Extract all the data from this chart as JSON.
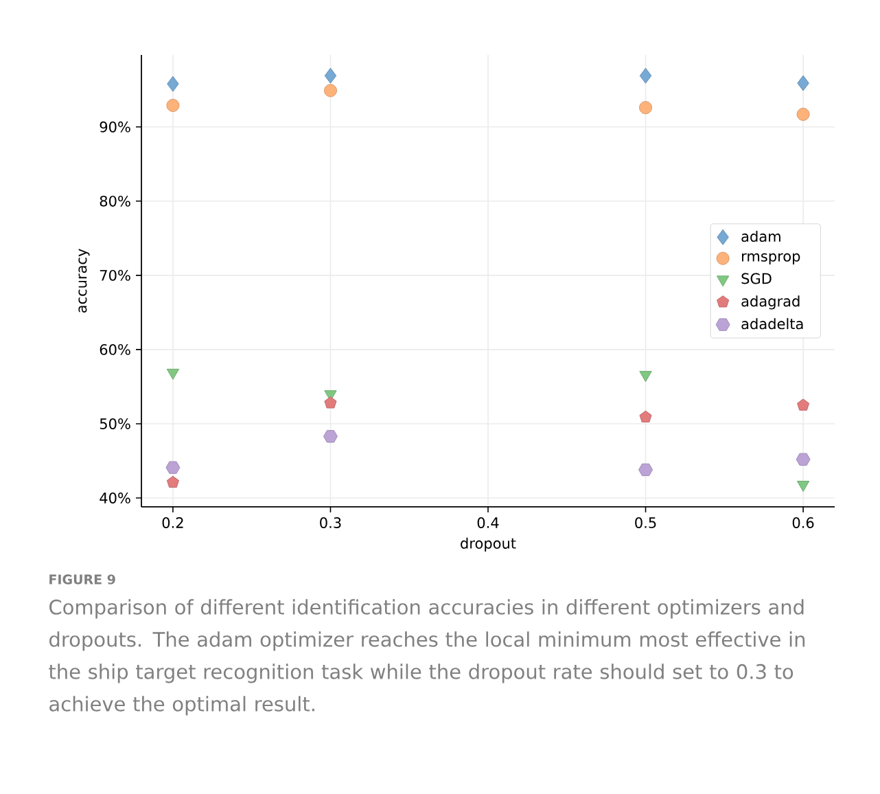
{
  "chart_data": {
    "type": "scatter",
    "xlabel": "dropout",
    "ylabel": "accuracy",
    "x": [
      0.2,
      0.3,
      0.5,
      0.6
    ],
    "series": [
      {
        "name": "adam",
        "color": "#76a9d4",
        "marker": "diamond",
        "values": [
          95.8,
          96.9,
          96.9,
          95.9
        ]
      },
      {
        "name": "rmsprop",
        "color": "#fdb27a",
        "marker": "circle",
        "values": [
          92.9,
          94.9,
          92.6,
          91.7
        ]
      },
      {
        "name": "SGD",
        "color": "#80c882",
        "marker": "triangle",
        "values": [
          56.9,
          54.0,
          56.6,
          41.8
        ]
      },
      {
        "name": "adagrad",
        "color": "#e27b7c",
        "values": [
          42.1,
          52.8,
          50.9,
          52.5
        ]
      },
      {
        "name": "adadelta",
        "color": "#bba3d6",
        "values": [
          44.1,
          48.3,
          43.8,
          45.2
        ]
      }
    ],
    "xlim": [
      0.18,
      0.62
    ],
    "xticks": [
      0.2,
      0.3,
      0.4,
      0.5,
      0.6
    ],
    "ylim": [
      38.8,
      99.7
    ],
    "yticks": [
      {
        "value": 40,
        "label": "40%"
      },
      {
        "value": 50,
        "label": "50%"
      },
      {
        "value": 60,
        "label": "60%"
      },
      {
        "value": 70,
        "label": "70%"
      },
      {
        "value": 80,
        "label": "80%"
      },
      {
        "value": 90,
        "label": "90%"
      }
    ],
    "grid": true,
    "legend": "right",
    "annotations": [
      "FIGURE 9",
      "Comparison of different identification accuracies in different optimizers and dropouts. The adam optimizer reaches the local minimum most effective in the ship target recognition task while the dropout rate should set to 0.3 to achieve the optimal result."
    ]
  }
}
